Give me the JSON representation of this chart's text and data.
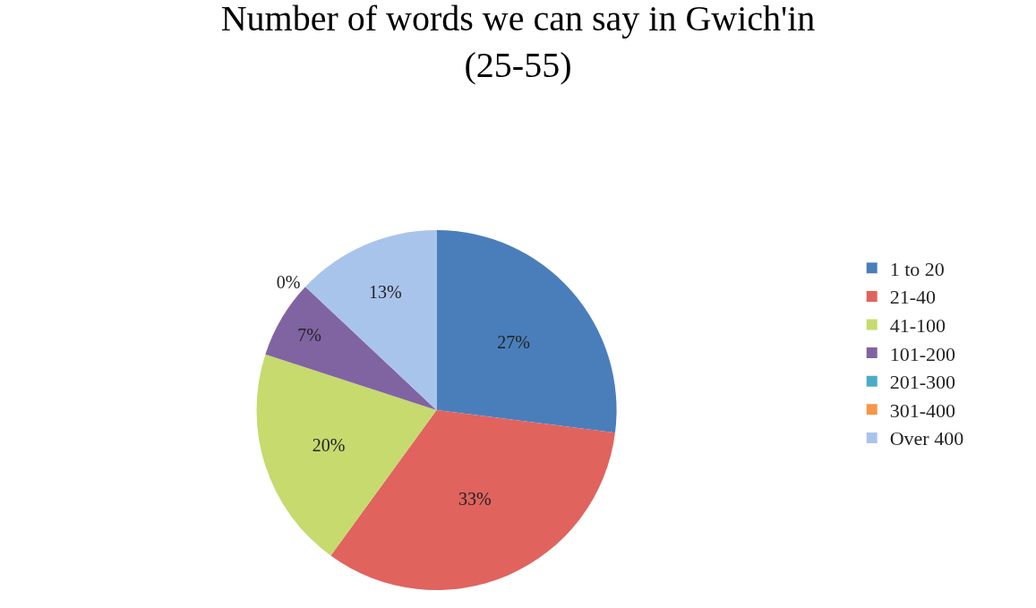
{
  "chart_data": {
    "type": "pie",
    "title": "Number of words we can say in Gwich'in\n(25-55)",
    "categories": [
      "1 to 20",
      "21-40",
      "41-100",
      "101-200",
      "201-300",
      "301-400",
      "Over 400"
    ],
    "values": [
      27,
      33,
      20,
      7,
      0,
      0,
      13
    ],
    "colors": [
      "#4a7ebb",
      "#e0635e",
      "#c6da6e",
      "#8064a2",
      "#4bacc6",
      "#f79646",
      "#a9c4eb"
    ],
    "value_labels": [
      "27%",
      "33%",
      "20%",
      "7%",
      "0%",
      null,
      "13%"
    ],
    "legend": "right"
  }
}
